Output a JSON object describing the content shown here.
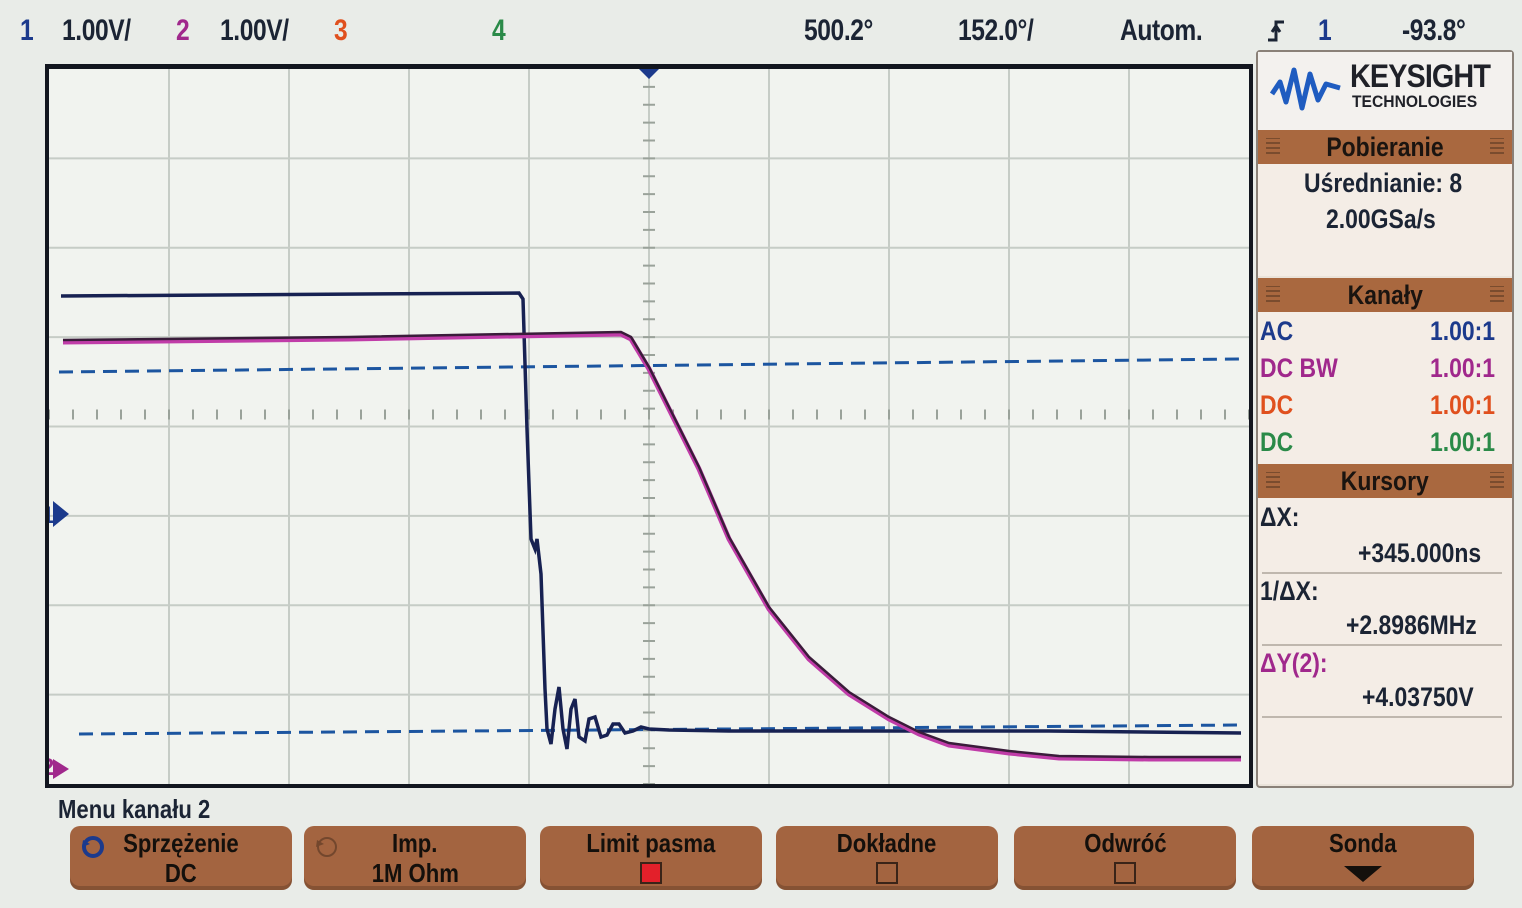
{
  "topbar": {
    "ch1_num": "1",
    "ch1_scale": "1.00V/",
    "ch2_num": "2",
    "ch2_scale": "1.00V/",
    "ch3_num": "3",
    "ch4_num": "4",
    "time_pos": "500.2°",
    "time_scale": "152.0°/",
    "trigger_mode": "Autom.",
    "trigger_source": "1",
    "trigger_level": "-93.8°"
  },
  "colors": {
    "ch1": "#1c3a8c",
    "ch2": "#a0288c",
    "ch3": "#e0501e",
    "ch4": "#2a8a48",
    "softkey": "#a36440",
    "header": "#a9683f"
  },
  "brand": {
    "name": "KEYSIGHT",
    "sub": "TECHNOLOGIES"
  },
  "acquisition": {
    "title": "Pobieranie",
    "averaging": "Uśrednianie: 8",
    "sample_rate": "2.00GSa/s"
  },
  "channels": {
    "title": "Kanały",
    "rows": [
      {
        "coupling": "AC",
        "probe": "1.00:1"
      },
      {
        "coupling": "DC BW",
        "probe": "1.00:1"
      },
      {
        "coupling": "DC",
        "probe": "1.00:1"
      },
      {
        "coupling": "DC",
        "probe": "1.00:1"
      }
    ]
  },
  "cursors": {
    "title": "Kursory",
    "dx_label": "ΔX:",
    "dx_value": "+345.000ns",
    "inv_dx_label": "1/ΔX:",
    "inv_dx_value": "+2.8986MHz",
    "dy_label": "ΔY(2):",
    "dy_value": "+4.03750V"
  },
  "markers": {
    "ch1": "1",
    "ch2": "2"
  },
  "menu": {
    "title": "Menu  kanału 2",
    "softkeys": [
      {
        "label": "Sprzężenie",
        "value": "DC",
        "icon": "cycle-icon"
      },
      {
        "label": "Imp.",
        "value": "1M Ohm",
        "icon": "cycle-icon"
      },
      {
        "label": "Limit pasma",
        "checked": true
      },
      {
        "label": "Dokładne",
        "checked": false
      },
      {
        "label": "Odwróć",
        "checked": false
      },
      {
        "label": "Sonda",
        "icon": "arrow-down-icon"
      }
    ]
  }
}
